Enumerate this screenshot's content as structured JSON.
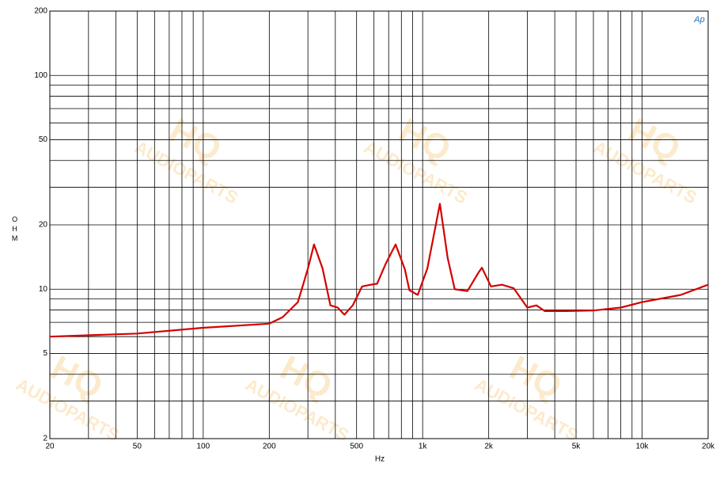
{
  "chart_data": {
    "type": "line",
    "x_label": "Hz",
    "y_label": "OHM",
    "logo": "Ap",
    "watermark": [
      "HQ",
      "AUDIOPARTS"
    ],
    "log_x": true,
    "log_y": true,
    "grid": true,
    "xlim": [
      20,
      20000
    ],
    "ylim": [
      2,
      200
    ],
    "xticks": [
      20,
      50,
      100,
      200,
      500,
      {
        "value": 1000,
        "label": "1k"
      },
      {
        "value": 2000,
        "label": "2k"
      },
      {
        "value": 5000,
        "label": "5k"
      },
      {
        "value": 10000,
        "label": "10k"
      },
      {
        "value": 20000,
        "label": "20k"
      }
    ],
    "xticks_minor": [
      30,
      40,
      60,
      70,
      80,
      90,
      300,
      400,
      600,
      700,
      800,
      900,
      3000,
      4000,
      6000,
      7000,
      8000,
      9000
    ],
    "yticks": [
      2,
      5,
      10,
      20,
      50,
      100,
      200
    ],
    "yticks_minor": [
      3,
      4,
      6,
      7,
      8,
      9,
      30,
      40,
      60,
      70,
      80,
      90
    ],
    "series": [
      {
        "color": "#d40000",
        "x": [
          20,
          50,
          100,
          200,
          230,
          270,
          300,
          320,
          350,
          380,
          410,
          440,
          480,
          530,
          580,
          620,
          680,
          753,
          830,
          870,
          950,
          1050,
          1199,
          1300,
          1400,
          1600,
          1800,
          1862,
          2050,
          2300,
          2600,
          3000,
          3300,
          3600,
          4500,
          6000,
          8000,
          10000,
          15000,
          20000
        ],
        "values": [
          6.0,
          6.2,
          6.6,
          6.9,
          7.4,
          8.7,
          12.5,
          16.2,
          12.5,
          8.4,
          8.2,
          7.6,
          8.4,
          10.3,
          10.5,
          10.6,
          13.2,
          16.2,
          12.4,
          9.9,
          9.4,
          12.5,
          25.1,
          14.0,
          10.0,
          9.8,
          12.0,
          12.6,
          10.3,
          10.5,
          10.1,
          8.2,
          8.4,
          7.9,
          7.9,
          7.95,
          8.2,
          8.7,
          9.4,
          10.5
        ]
      }
    ]
  }
}
